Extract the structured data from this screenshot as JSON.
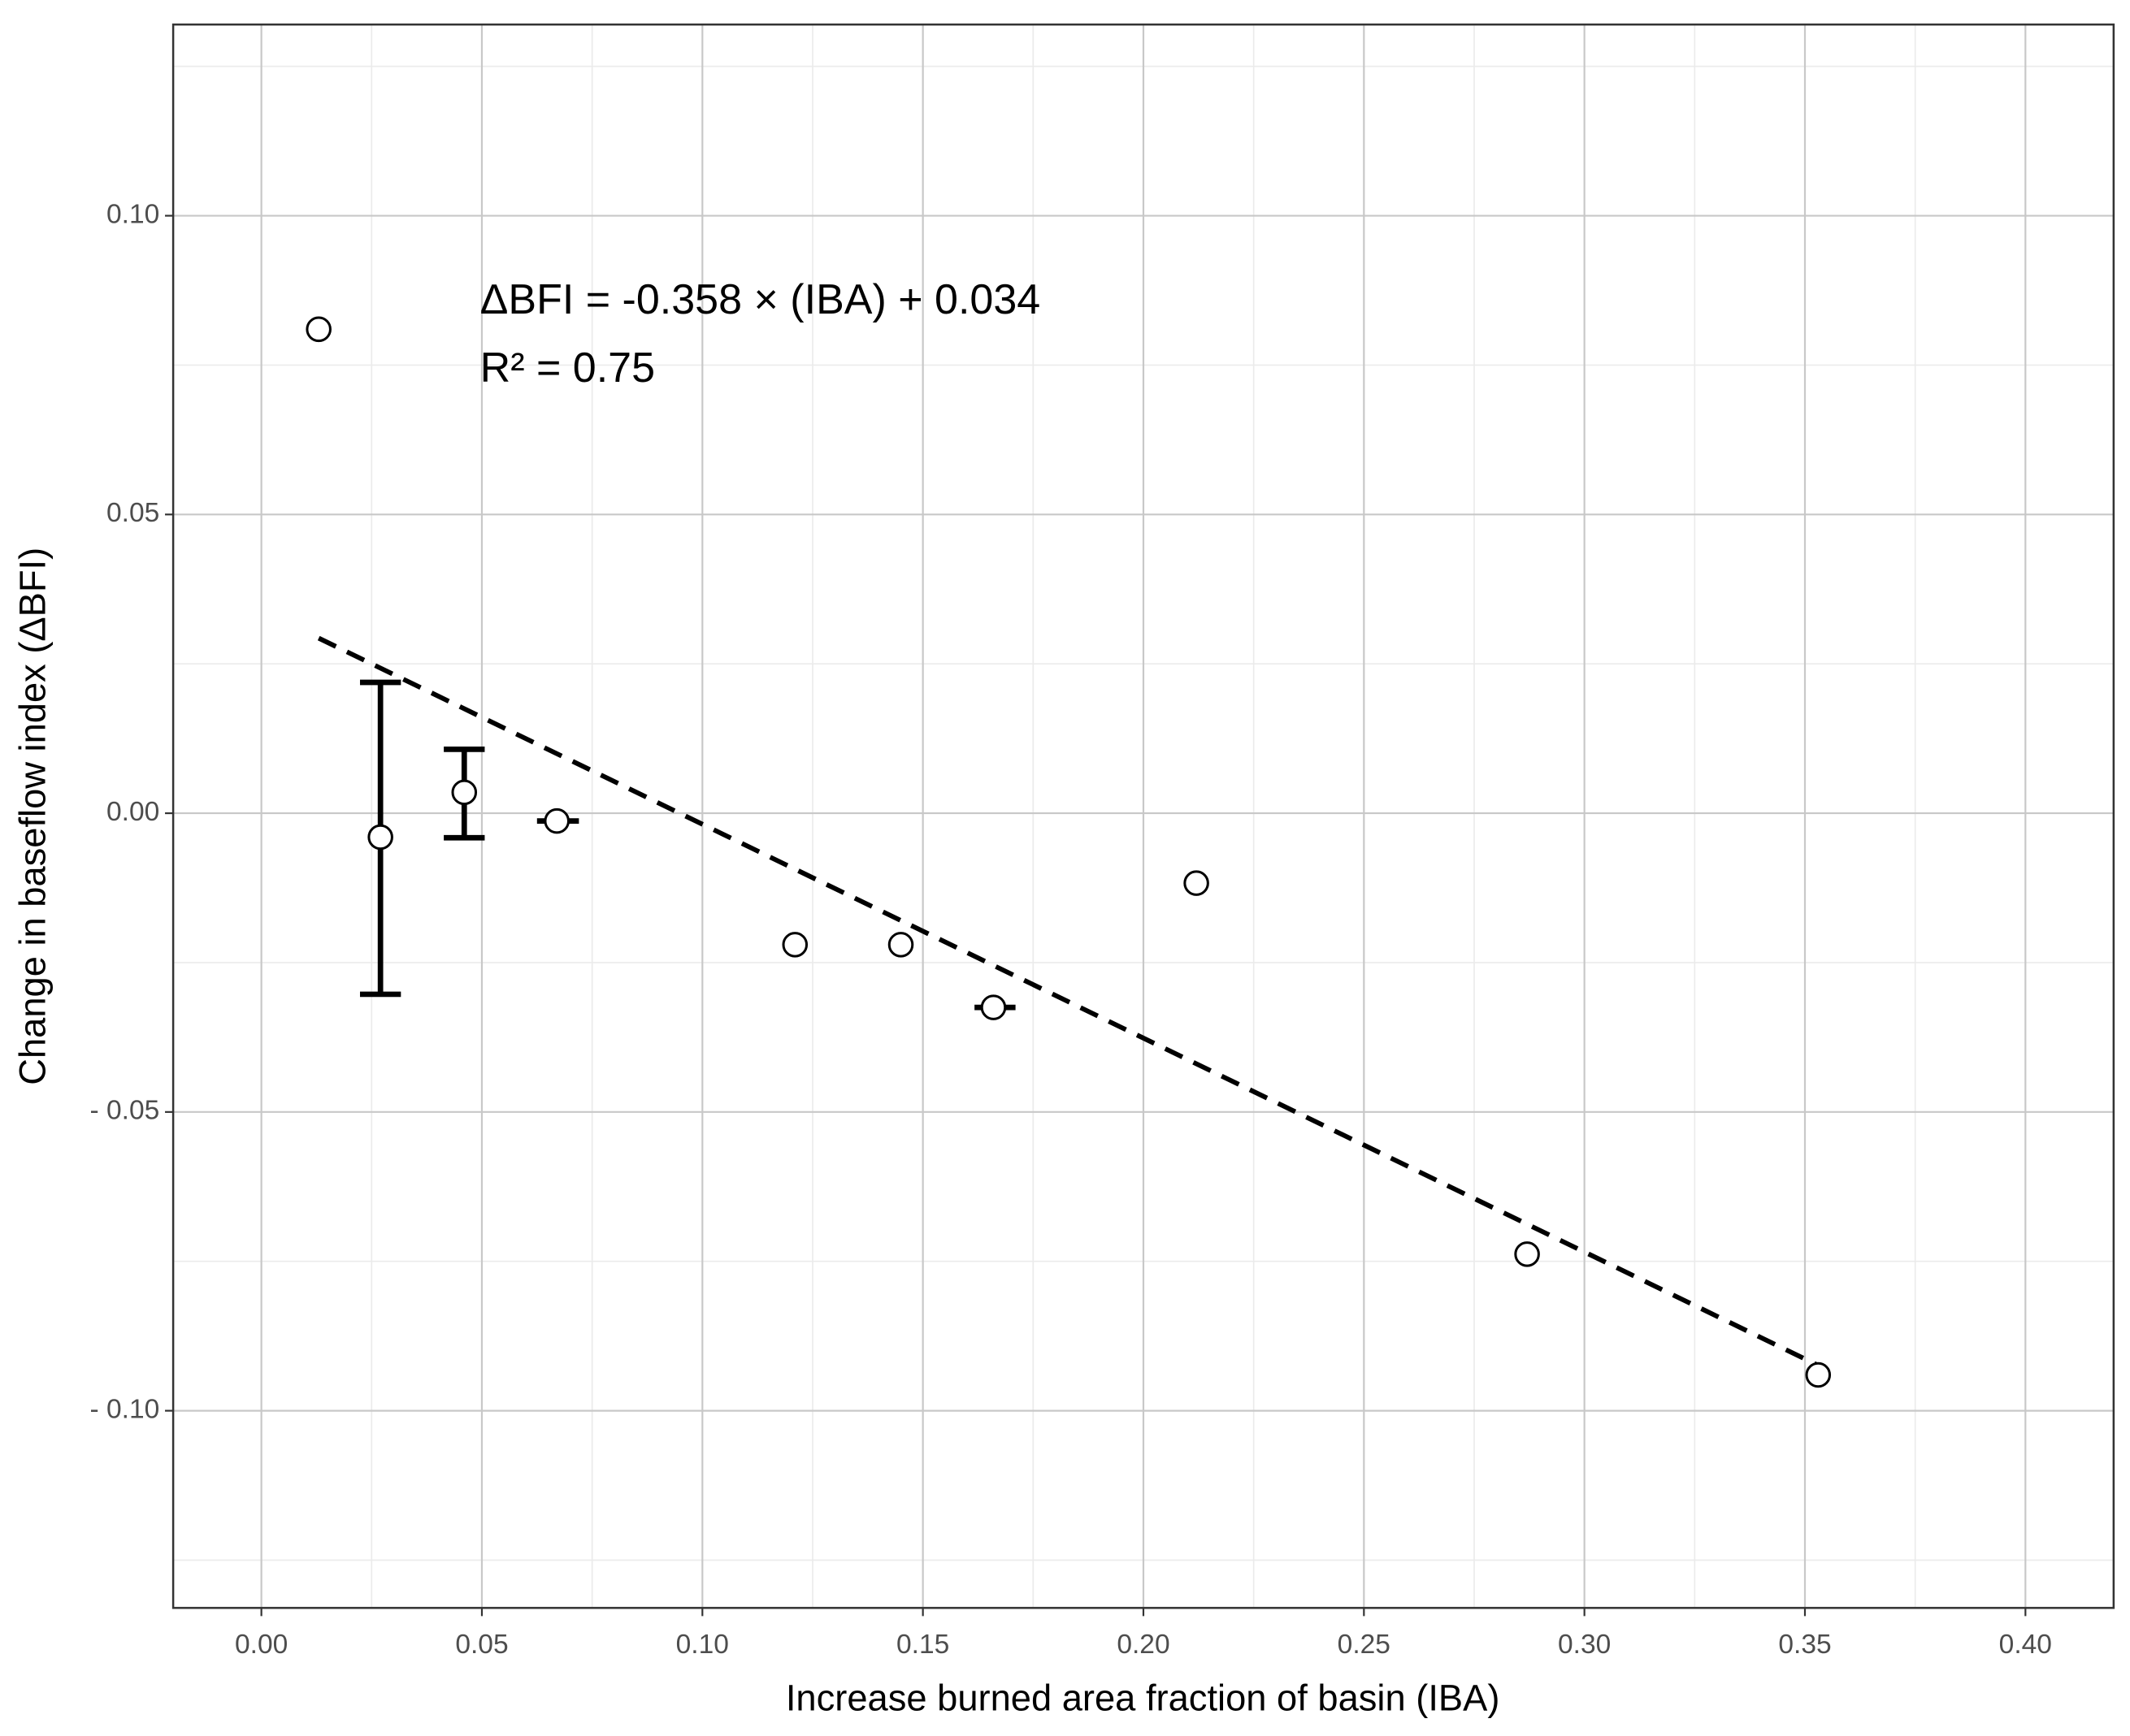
{
  "chart_data": {
    "type": "scatter",
    "x_label": "Increase burned area fraction of basin (IBA)",
    "y_label": "Change in baseflow index (ΔBFI)",
    "annotations": [
      "ΔBFI = -0.358 × (IBA) + 0.034",
      "R² = 0.75"
    ],
    "xlim": [
      -0.02,
      0.42
    ],
    "ylim": [
      -0.133,
      0.132
    ],
    "xticks": [
      {
        "value": 0,
        "label": "0.00"
      },
      {
        "value": 0.05,
        "label": "0.05"
      },
      {
        "value": 0.1,
        "label": "0.10"
      },
      {
        "value": 0.15,
        "label": "0.15"
      },
      {
        "value": 0.2,
        "label": "0.20"
      },
      {
        "value": 0.25,
        "label": "0.25"
      },
      {
        "value": 0.3,
        "label": "0.30"
      },
      {
        "value": 0.35,
        "label": "0.35"
      },
      {
        "value": 0.4,
        "label": "0.40"
      }
    ],
    "yticks": [
      {
        "value": -0.1,
        "label": "- 0.10"
      },
      {
        "value": -0.05,
        "label": "- 0.05"
      },
      {
        "value": 0,
        "label": "0.00"
      },
      {
        "value": 0.05,
        "label": "0.05"
      },
      {
        "value": 0.1,
        "label": "0.10"
      }
    ],
    "grid": true,
    "x": [
      0.013,
      0.027,
      0.046,
      0.067,
      0.121,
      0.145,
      0.166,
      0.212,
      0.287,
      0.353
    ],
    "y": [
      0.081,
      -0.004,
      0.0035,
      -0.0013,
      -0.022,
      -0.022,
      -0.0325,
      -0.0117,
      -0.0738,
      -0.094
    ],
    "y_lower": [
      null,
      -0.0303,
      -0.0041,
      null,
      null,
      null,
      null,
      null,
      null,
      null
    ],
    "y_upper": [
      null,
      0.0219,
      0.0107,
      null,
      null,
      null,
      null,
      null,
      null,
      null
    ],
    "x_lower": [
      null,
      null,
      null,
      0.0625,
      null,
      null,
      0.1617,
      null,
      null,
      null
    ],
    "x_upper": [
      null,
      null,
      null,
      0.072,
      null,
      null,
      0.171,
      null,
      null,
      null
    ],
    "marker_color": "#000000",
    "fit": {
      "x": [
        0.013,
        0.353
      ],
      "y": [
        0.0293,
        -0.0924
      ],
      "color": "#000000"
    }
  }
}
